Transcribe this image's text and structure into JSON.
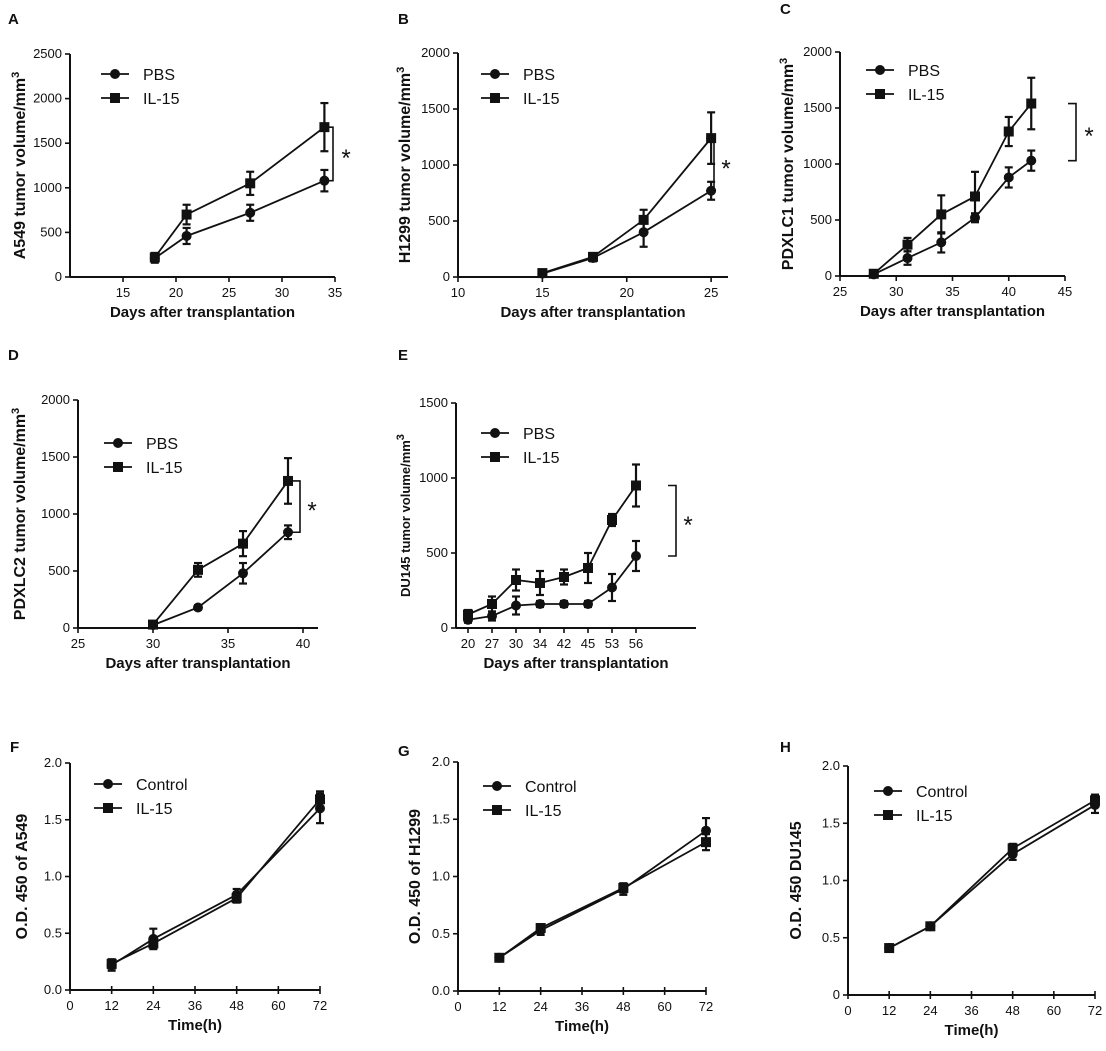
{
  "chart_data": [
    {
      "panel": "A",
      "type": "line",
      "ylabel": "A549 tumor volume/mm",
      "ylabel_sup": "3",
      "xlabel": "Days after transplantation",
      "xlim": [
        10,
        35
      ],
      "ylim": [
        0,
        2500
      ],
      "xticks": [
        15,
        20,
        25,
        30,
        35
      ],
      "yticks": [
        0,
        500,
        1000,
        1500,
        2000,
        2500
      ],
      "legend": [
        "PBS",
        "IL-15"
      ],
      "significance": "*",
      "series": [
        {
          "name": "PBS",
          "marker": "circle",
          "x": [
            18,
            21,
            27,
            34
          ],
          "y": [
            210,
            460,
            720,
            1080
          ],
          "err": [
            50,
            90,
            90,
            120
          ]
        },
        {
          "name": "IL-15",
          "marker": "square",
          "x": [
            18,
            21,
            27,
            34
          ],
          "y": [
            220,
            700,
            1050,
            1680
          ],
          "err": [
            50,
            110,
            130,
            270
          ]
        }
      ]
    },
    {
      "panel": "B",
      "type": "line",
      "ylabel": "H1299 tumor volume/mm",
      "ylabel_sup": "3",
      "xlabel": "Days after transplantation",
      "xlim": [
        10,
        26
      ],
      "ylim": [
        0,
        2000
      ],
      "xticks": [
        10,
        15,
        20,
        25
      ],
      "yticks": [
        0,
        500,
        1000,
        1500,
        2000
      ],
      "legend": [
        "PBS",
        "IL-15"
      ],
      "significance": "*",
      "series": [
        {
          "name": "PBS",
          "marker": "circle",
          "x": [
            15,
            18,
            21,
            25
          ],
          "y": [
            30,
            170,
            400,
            770
          ],
          "err": [
            10,
            30,
            130,
            80
          ]
        },
        {
          "name": "IL-15",
          "marker": "square",
          "x": [
            15,
            18,
            21,
            25
          ],
          "y": [
            35,
            180,
            510,
            1240
          ],
          "err": [
            10,
            30,
            90,
            230
          ]
        }
      ]
    },
    {
      "panel": "C",
      "type": "line",
      "ylabel": "PDXLC1 tumor volume/mm",
      "ylabel_sup": "3",
      "xlabel": "Days after transplantation",
      "xlim": [
        25,
        45
      ],
      "ylim": [
        0,
        2000
      ],
      "xticks": [
        25,
        30,
        35,
        40,
        45
      ],
      "yticks": [
        0,
        500,
        1000,
        1500,
        2000
      ],
      "legend": [
        "PBS",
        "IL-15"
      ],
      "significance": "*",
      "series": [
        {
          "name": "PBS",
          "marker": "circle",
          "x": [
            28,
            31,
            34,
            37,
            40,
            42
          ],
          "y": [
            15,
            160,
            300,
            520,
            880,
            1030
          ],
          "err": [
            10,
            60,
            90,
            40,
            90,
            90
          ]
        },
        {
          "name": "IL-15",
          "marker": "square",
          "x": [
            28,
            31,
            34,
            37,
            40,
            42
          ],
          "y": [
            20,
            280,
            550,
            710,
            1290,
            1540
          ],
          "err": [
            10,
            60,
            170,
            220,
            130,
            230
          ]
        }
      ]
    },
    {
      "panel": "D",
      "type": "line",
      "ylabel": "PDXLC2 tumor volume/mm",
      "ylabel_sup": "3",
      "xlabel": "Days after transplantation",
      "xlim": [
        25,
        41
      ],
      "ylim": [
        0,
        2000
      ],
      "xticks": [
        25,
        30,
        35,
        40
      ],
      "yticks": [
        0,
        500,
        1000,
        1500,
        2000
      ],
      "legend": [
        "PBS",
        "IL-15"
      ],
      "significance": "*",
      "series": [
        {
          "name": "PBS",
          "marker": "circle",
          "x": [
            30,
            33,
            36,
            39
          ],
          "y": [
            25,
            180,
            480,
            840
          ],
          "err": [
            10,
            20,
            90,
            60
          ]
        },
        {
          "name": "IL-15",
          "marker": "square",
          "x": [
            30,
            33,
            36,
            39
          ],
          "y": [
            30,
            510,
            740,
            1290
          ],
          "err": [
            10,
            60,
            110,
            200
          ]
        }
      ]
    },
    {
      "panel": "E",
      "type": "line",
      "ylabel": "DU145 tumor volume/mm",
      "ylabel_sup": "3",
      "xlabel": "Days after transplantation",
      "xlim": [
        -0.5,
        9.5
      ],
      "ylim": [
        0,
        1500
      ],
      "xticks": [
        0,
        1,
        2,
        3,
        4,
        5,
        6,
        7
      ],
      "xticklabels": [
        "20",
        "27",
        "30",
        "34",
        "42",
        "45",
        "53",
        "56"
      ],
      "yticks": [
        0,
        500,
        1000,
        1500
      ],
      "legend": [
        "PBS",
        "IL-15"
      ],
      "significance": "*",
      "series": [
        {
          "name": "PBS",
          "marker": "circle",
          "x": [
            0,
            1,
            2,
            3,
            4,
            5,
            6,
            7
          ],
          "y": [
            55,
            80,
            150,
            160,
            160,
            160,
            270,
            480
          ],
          "err": [
            20,
            30,
            60,
            20,
            20,
            20,
            90,
            100
          ]
        },
        {
          "name": "IL-15",
          "marker": "square",
          "x": [
            0,
            1,
            2,
            3,
            4,
            5,
            6,
            7
          ],
          "y": [
            90,
            160,
            320,
            300,
            340,
            400,
            720,
            950
          ],
          "err": [
            30,
            50,
            70,
            80,
            50,
            100,
            40,
            140
          ]
        }
      ]
    },
    {
      "panel": "F",
      "type": "line",
      "ylabel": "O.D. 450 of A549",
      "ylabel_sup": "",
      "xlabel": "Time(h)",
      "xlim": [
        0,
        72
      ],
      "ylim": [
        0,
        2.0
      ],
      "xticks": [
        0,
        12,
        24,
        36,
        48,
        60,
        72
      ],
      "yticks": [
        0.0,
        0.5,
        1.0,
        1.5,
        2.0
      ],
      "ytick_labels": [
        "0.0",
        "0.5",
        "1.0",
        "1.5",
        "2.0"
      ],
      "legend": [
        "Control",
        "IL-15"
      ],
      "significance": "",
      "series": [
        {
          "name": "Control",
          "marker": "circle",
          "x": [
            12,
            24,
            48,
            72
          ],
          "y": [
            0.22,
            0.45,
            0.84,
            1.6
          ],
          "err": [
            0.05,
            0.09,
            0.05,
            0.13
          ]
        },
        {
          "name": "IL-15",
          "marker": "square",
          "x": [
            12,
            24,
            48,
            72
          ],
          "y": [
            0.23,
            0.41,
            0.81,
            1.68
          ],
          "err": [
            0.04,
            0.04,
            0.04,
            0.07
          ]
        }
      ]
    },
    {
      "panel": "G",
      "type": "line",
      "ylabel": "O.D. 450 of H1299",
      "ylabel_sup": "",
      "xlabel": "Time(h)",
      "xlim": [
        0,
        72
      ],
      "ylim": [
        0,
        2.0
      ],
      "xticks": [
        0,
        12,
        24,
        36,
        48,
        60,
        72
      ],
      "yticks": [
        0.0,
        0.5,
        1.0,
        1.5,
        2.0
      ],
      "ytick_labels": [
        "0.0",
        "0.5",
        "1.0",
        "1.5",
        "2.0"
      ],
      "legend": [
        "Control",
        "IL-15"
      ],
      "significance": "",
      "series": [
        {
          "name": "Control",
          "marker": "circle",
          "x": [
            12,
            24,
            48,
            72
          ],
          "y": [
            0.29,
            0.53,
            0.89,
            1.4
          ],
          "err": [
            0.02,
            0.04,
            0.05,
            0.11
          ]
        },
        {
          "name": "IL-15",
          "marker": "square",
          "x": [
            12,
            24,
            48,
            72
          ],
          "y": [
            0.29,
            0.55,
            0.9,
            1.3
          ],
          "err": [
            0.02,
            0.03,
            0.04,
            0.07
          ]
        }
      ]
    },
    {
      "panel": "H",
      "type": "line",
      "ylabel": "O.D. 450 DU145",
      "ylabel_sup": "",
      "xlabel": "Time(h)",
      "xlim": [
        0,
        72
      ],
      "ylim": [
        0,
        2.0
      ],
      "xticks": [
        0,
        12,
        24,
        36,
        48,
        60,
        72
      ],
      "yticks": [
        0.0,
        0.5,
        1.0,
        1.5,
        2.0
      ],
      "ytick_labels": [
        "0",
        "0.5",
        "1.0",
        "1.5",
        "2.0"
      ],
      "legend": [
        "Control",
        "IL-15"
      ],
      "significance": "",
      "series": [
        {
          "name": "Control",
          "marker": "circle",
          "x": [
            12,
            24,
            48,
            72
          ],
          "y": [
            0.41,
            0.6,
            1.23,
            1.66
          ],
          "err": [
            0.02,
            0.03,
            0.05,
            0.07
          ]
        },
        {
          "name": "IL-15",
          "marker": "square",
          "x": [
            12,
            24,
            48,
            72
          ],
          "y": [
            0.41,
            0.6,
            1.28,
            1.7
          ],
          "err": [
            0.02,
            0.02,
            0.04,
            0.05
          ]
        }
      ]
    }
  ]
}
